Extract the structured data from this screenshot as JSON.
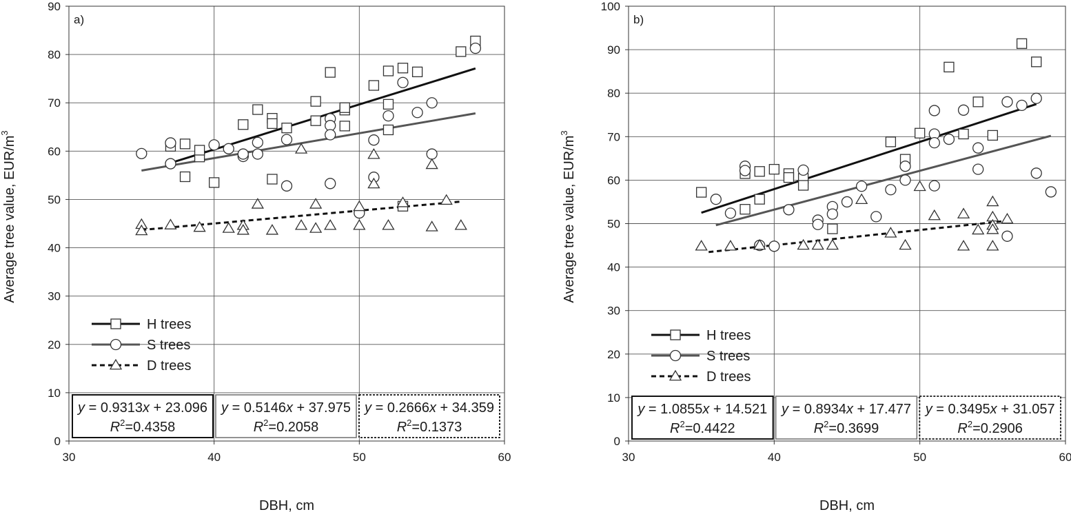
{
  "chart_data": [
    {
      "type": "scatter",
      "panel_label": "a)",
      "xlabel": "DBH, cm",
      "ylabel_main": "Average tree value, EUR/m",
      "ylabel_sup": "3",
      "xlim": [
        30,
        60
      ],
      "ylim": [
        0,
        90
      ],
      "xticks": [
        30,
        40,
        50,
        60
      ],
      "yticks": [
        0,
        10,
        20,
        30,
        40,
        50,
        60,
        70,
        80,
        90
      ],
      "grid": true,
      "legend_position": "lower-left",
      "series": [
        {
          "name": "H trees",
          "marker": "square",
          "line_color": "#111111",
          "line_style": "solid",
          "trend": {
            "intercept": 23.096,
            "slope": 0.9313,
            "x_range": [
              37,
              58
            ]
          },
          "equation": "y = 0.9313x + 23.096",
          "r2": "=0.4358",
          "points": [
            [
              37,
              61
            ],
            [
              38,
              61.5
            ],
            [
              38,
              54.7
            ],
            [
              39,
              58.8
            ],
            [
              39,
              60.2
            ],
            [
              40,
              53.5
            ],
            [
              42,
              65.5
            ],
            [
              43,
              68.6
            ],
            [
              44,
              66.8
            ],
            [
              44,
              65.7
            ],
            [
              44,
              54.2
            ],
            [
              45,
              64.8
            ],
            [
              47,
              70.3
            ],
            [
              47,
              66.3
            ],
            [
              48,
              76.3
            ],
            [
              49,
              68.5
            ],
            [
              49,
              69
            ],
            [
              49,
              65.2
            ],
            [
              51,
              73.6
            ],
            [
              52,
              76.6
            ],
            [
              52,
              69.7
            ],
            [
              52,
              64.4
            ],
            [
              53,
              77.2
            ],
            [
              54,
              76.4
            ],
            [
              53,
              48.6
            ],
            [
              57,
              80.6
            ],
            [
              58,
              82.8
            ]
          ]
        },
        {
          "name": "S trees",
          "marker": "circle",
          "line_color": "#555555",
          "line_style": "solid",
          "trend": {
            "intercept": 37.975,
            "slope": 0.5146,
            "x_range": [
              35,
              58
            ]
          },
          "equation": "y = 0.5146x + 37.975",
          "r2": "=0.2058",
          "points": [
            [
              35,
              59.5
            ],
            [
              37,
              61.7
            ],
            [
              37,
              57.4
            ],
            [
              40,
              61.3
            ],
            [
              41,
              60.5
            ],
            [
              42,
              58.9
            ],
            [
              42,
              59.4
            ],
            [
              43,
              61.8
            ],
            [
              43,
              59.4
            ],
            [
              45,
              62.4
            ],
            [
              45,
              52.8
            ],
            [
              48,
              66.7
            ],
            [
              48,
              65.3
            ],
            [
              48,
              63.4
            ],
            [
              48,
              53.3
            ],
            [
              50,
              47.2
            ],
            [
              51,
              62.3
            ],
            [
              51,
              54.6
            ],
            [
              52,
              67.3
            ],
            [
              53,
              74.2
            ],
            [
              54,
              68
            ],
            [
              55,
              70
            ],
            [
              55,
              59.4
            ],
            [
              58,
              81.3
            ]
          ]
        },
        {
          "name": "D trees",
          "marker": "triangle",
          "line_color": "#111111",
          "line_style": "dashed",
          "trend": {
            "intercept": 34.359,
            "slope": 0.2666,
            "x_range": [
              35,
              57
            ]
          },
          "equation": "y = 0.2666x + 34.359",
          "r2": "=0.1373",
          "points": [
            [
              35,
              44.8
            ],
            [
              35,
              43.5
            ],
            [
              37,
              44.7
            ],
            [
              39,
              44.2
            ],
            [
              41,
              44
            ],
            [
              42,
              44.6
            ],
            [
              42,
              43.6
            ],
            [
              43,
              49
            ],
            [
              44,
              43.6
            ],
            [
              46,
              60.4
            ],
            [
              46,
              44.6
            ],
            [
              47,
              49
            ],
            [
              47,
              44
            ],
            [
              48,
              44.6
            ],
            [
              50,
              48.5
            ],
            [
              50,
              44.6
            ],
            [
              51,
              59.3
            ],
            [
              51,
              53.2
            ],
            [
              52,
              44.6
            ],
            [
              53,
              49.3
            ],
            [
              55,
              57.2
            ],
            [
              55,
              44.3
            ],
            [
              56,
              49.8
            ],
            [
              57,
              44.6
            ]
          ]
        }
      ]
    },
    {
      "type": "scatter",
      "panel_label": "b)",
      "xlabel": "DBH, cm",
      "ylabel_main": "Average tree value, EUR/m",
      "ylabel_sup": "3",
      "xlim": [
        30,
        60
      ],
      "ylim": [
        0,
        100
      ],
      "xticks": [
        30,
        40,
        50,
        60
      ],
      "yticks": [
        0,
        10,
        20,
        30,
        40,
        50,
        60,
        70,
        80,
        90,
        100
      ],
      "grid": true,
      "legend_position": "lower-left",
      "series": [
        {
          "name": "H trees",
          "marker": "square",
          "line_color": "#111111",
          "line_style": "solid",
          "trend": {
            "intercept": 14.521,
            "slope": 1.0855,
            "x_range": [
              35,
              58
            ]
          },
          "equation": "y = 1.0855x + 14.521",
          "r2": "=0.4422",
          "points": [
            [
              35,
              57.2
            ],
            [
              38,
              61.5
            ],
            [
              38,
              53.3
            ],
            [
              39,
              62
            ],
            [
              39,
              55.6
            ],
            [
              40,
              62.5
            ],
            [
              41,
              61.5
            ],
            [
              41,
              60.6
            ],
            [
              42,
              60.4
            ],
            [
              42,
              58.8
            ],
            [
              44,
              48.8
            ],
            [
              48,
              68.8
            ],
            [
              49,
              64.8
            ],
            [
              50,
              70.8
            ],
            [
              52,
              86
            ],
            [
              53,
              70.6
            ],
            [
              54,
              78
            ],
            [
              55,
              70.3
            ],
            [
              57,
              91.4
            ],
            [
              58,
              87.2
            ]
          ]
        },
        {
          "name": "S trees",
          "marker": "circle",
          "line_color": "#555555",
          "line_style": "solid",
          "trend": {
            "intercept": 17.477,
            "slope": 0.8934,
            "x_range": [
              36,
              59
            ]
          },
          "equation": "y = 0.8934x + 17.477",
          "r2": "=0.3699",
          "points": [
            [
              36,
              55.6
            ],
            [
              37,
              52.4
            ],
            [
              38,
              63.2
            ],
            [
              38,
              62.2
            ],
            [
              39,
              45
            ],
            [
              40,
              44.8
            ],
            [
              41,
              53.2
            ],
            [
              42,
              62.3
            ],
            [
              43,
              50.8
            ],
            [
              43,
              49.8
            ],
            [
              44,
              53.9
            ],
            [
              44,
              52.2
            ],
            [
              45,
              55
            ],
            [
              46,
              58.6
            ],
            [
              47,
              51.6
            ],
            [
              48,
              57.8
            ],
            [
              49,
              63.2
            ],
            [
              49,
              60
            ],
            [
              51,
              76
            ],
            [
              51,
              70.6
            ],
            [
              51,
              68.6
            ],
            [
              51,
              58.7
            ],
            [
              52,
              69.4
            ],
            [
              53,
              76.1
            ],
            [
              54,
              67.4
            ],
            [
              54,
              62.5
            ],
            [
              56,
              78
            ],
            [
              56,
              47.1
            ],
            [
              57,
              77.2
            ],
            [
              58,
              78.8
            ],
            [
              58,
              61.6
            ],
            [
              59,
              57.3
            ]
          ]
        },
        {
          "name": "D trees",
          "marker": "triangle",
          "line_color": "#111111",
          "line_style": "dashed",
          "trend": {
            "intercept": 31.057,
            "slope": 0.3495,
            "x_range": [
              35.5,
              56
            ]
          },
          "equation": "y = 0.3495x + 31.057",
          "r2": "=0.2906",
          "points": [
            [
              35,
              44.8
            ],
            [
              37,
              44.8
            ],
            [
              39,
              45
            ],
            [
              42,
              45
            ],
            [
              43,
              45
            ],
            [
              44,
              45
            ],
            [
              46,
              55.5
            ],
            [
              48,
              47.8
            ],
            [
              49,
              45
            ],
            [
              50,
              58.5
            ],
            [
              51,
              51.8
            ],
            [
              53,
              52.2
            ],
            [
              53,
              44.8
            ],
            [
              54,
              48.5
            ],
            [
              55,
              55
            ],
            [
              55,
              51.5
            ],
            [
              55,
              49.6
            ],
            [
              55,
              48.6
            ],
            [
              55,
              44.8
            ],
            [
              56,
              51
            ]
          ]
        }
      ]
    }
  ]
}
